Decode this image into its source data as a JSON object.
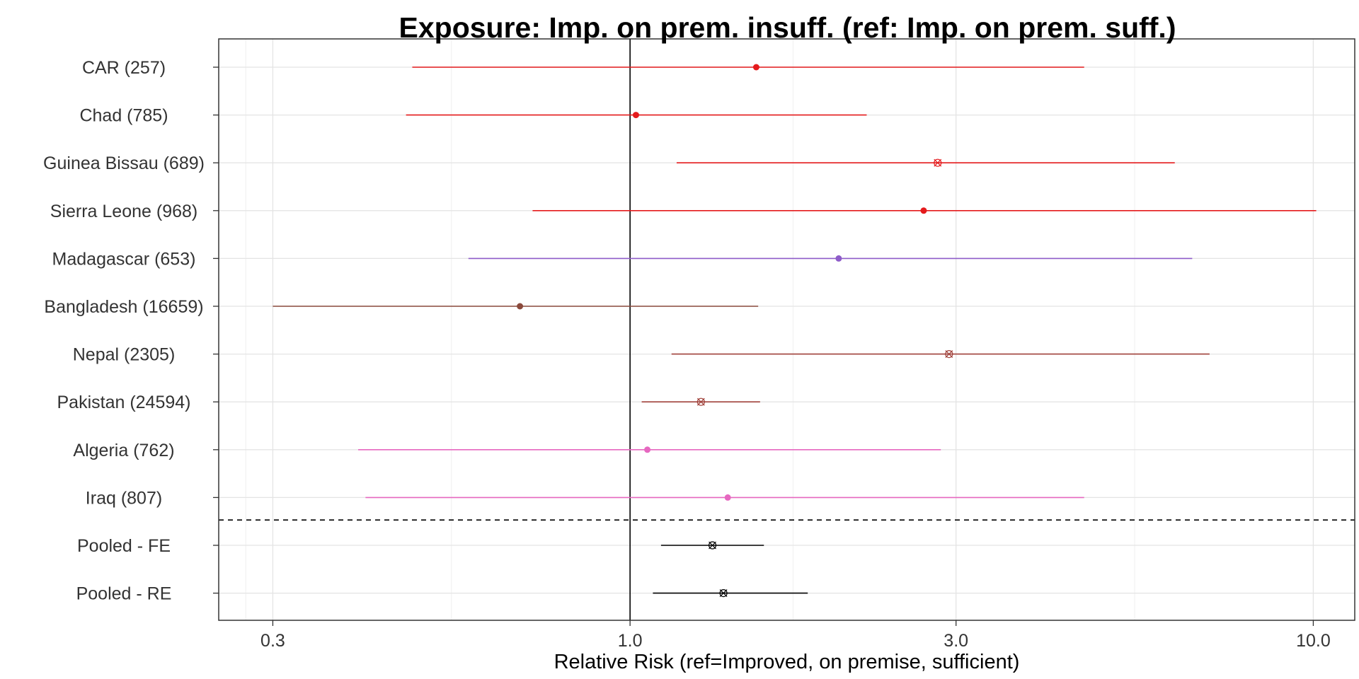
{
  "chart_data": {
    "type": "forest",
    "title": "Exposure: Imp. on prem. insuff. (ref: Imp. on prem. suff.)",
    "xlabel": "Relative Risk (ref=Improved, on premise, sufficient)",
    "x_scale": "log",
    "xlim": [
      0.25,
      11.5
    ],
    "x_ticks": [
      {
        "value": 0.3,
        "label": "0.3"
      },
      {
        "value": 1.0,
        "label": "1.0"
      },
      {
        "value": 3.0,
        "label": "3.0"
      },
      {
        "value": 10.0,
        "label": "10.0"
      }
    ],
    "reference_line": 1.0,
    "grid": true,
    "rows": [
      {
        "label": "CAR (257)",
        "estimate": 1.53,
        "lower": 0.48,
        "upper": 4.62,
        "color": "#e41a1c",
        "marker": "circle"
      },
      {
        "label": "Chad (785)",
        "estimate": 1.02,
        "lower": 0.47,
        "upper": 2.22,
        "color": "#e41a1c",
        "marker": "circle"
      },
      {
        "label": "Guinea Bissau (689)",
        "estimate": 2.82,
        "lower": 1.17,
        "upper": 6.27,
        "color": "#e41a1c",
        "marker": "x-circle"
      },
      {
        "label": "Sierra Leone (968)",
        "estimate": 2.69,
        "lower": 0.72,
        "upper": 10.1,
        "color": "#e41a1c",
        "marker": "circle"
      },
      {
        "label": "Madagascar (653)",
        "estimate": 2.02,
        "lower": 0.58,
        "upper": 6.65,
        "color": "#8e5cc9",
        "marker": "circle"
      },
      {
        "label": "Bangladesh (16659)",
        "estimate": 0.69,
        "lower": 0.3,
        "upper": 1.54,
        "color": "#8b4a3c",
        "marker": "circle"
      },
      {
        "label": "Nepal (2305)",
        "estimate": 2.93,
        "lower": 1.15,
        "upper": 7.05,
        "color": "#a0413a",
        "marker": "x-circle"
      },
      {
        "label": "Pakistan (24594)",
        "estimate": 1.27,
        "lower": 1.04,
        "upper": 1.55,
        "color": "#a0413a",
        "marker": "x-circle"
      },
      {
        "label": "Algeria (762)",
        "estimate": 1.06,
        "lower": 0.4,
        "upper": 2.85,
        "color": "#e668c0",
        "marker": "circle"
      },
      {
        "label": "Iraq (807)",
        "estimate": 1.39,
        "lower": 0.41,
        "upper": 4.62,
        "color": "#e668c0",
        "marker": "circle"
      },
      {
        "label": "Pooled - FE",
        "estimate": 1.32,
        "lower": 1.11,
        "upper": 1.57,
        "color": "#000000",
        "marker": "x-circle"
      },
      {
        "label": "Pooled - RE",
        "estimate": 1.37,
        "lower": 1.08,
        "upper": 1.82,
        "color": "#000000",
        "marker": "x-circle"
      }
    ],
    "separator_after_row": 10
  }
}
